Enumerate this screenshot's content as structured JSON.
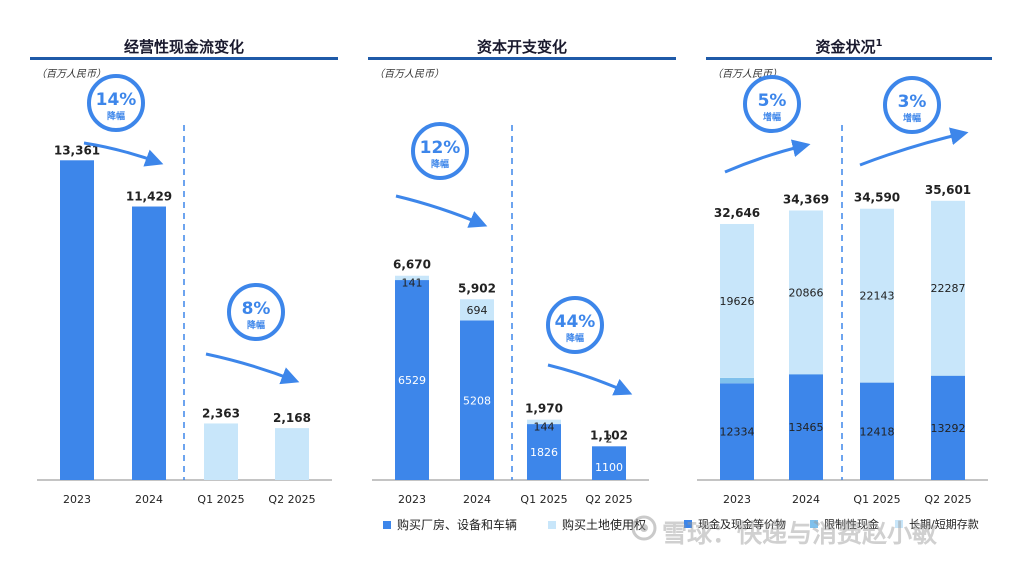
{
  "colors": {
    "dark": "#3d86ea",
    "light": "#c8e6fa",
    "mid": "#7fc0ec",
    "circle": "#3d86ea",
    "rule": "#1f5aa8"
  },
  "watermark": "雪球：快递与消费赵小敏",
  "chart_data": [
    {
      "type": "bar",
      "title": "经营性现金流变化",
      "unit": "（百万人民币）",
      "categories": [
        "2023",
        "2024",
        "Q1 2025",
        "Q2 2025"
      ],
      "values": [
        13361,
        11429,
        2363,
        2168
      ],
      "value_labels": [
        "13,361",
        "11,429",
        "2,363",
        "2,168"
      ],
      "bar_colors": [
        "dark",
        "dark",
        "light",
        "light"
      ],
      "ylim": [
        0,
        14000
      ],
      "annotations": [
        {
          "pct": "14%",
          "text": "降幅"
        },
        {
          "pct": "8%",
          "text": "降幅"
        }
      ]
    },
    {
      "type": "bar",
      "stacked": true,
      "title": "资本开支变化",
      "unit": "（百万人民币）",
      "categories": [
        "2023",
        "2024",
        "Q1 2025",
        "Q2 2025"
      ],
      "series": [
        {
          "name": "购买厂房、设备和车辆",
          "values": [
            6529,
            5208,
            1826,
            1100
          ]
        },
        {
          "name": "购买土地使用权",
          "values": [
            141,
            694,
            144,
            2
          ]
        }
      ],
      "totals": [
        "6,670",
        "5,902",
        "1,970",
        "1,102"
      ],
      "ylim": [
        0,
        8000
      ],
      "annotations": [
        {
          "pct": "12%",
          "text": "降幅"
        },
        {
          "pct": "44%",
          "text": "降幅"
        }
      ]
    },
    {
      "type": "bar",
      "stacked": true,
      "title": "资金状况",
      "title_sup": "1",
      "unit": "（百万人民币）",
      "categories": [
        "2023",
        "2024",
        "Q1 2025",
        "Q2 2025"
      ],
      "series": [
        {
          "name": "现金及现金等价物",
          "values": [
            12334,
            13465,
            12418,
            13292
          ]
        },
        {
          "name": "限制性现金",
          "values": [
            686,
            38,
            29,
            23
          ]
        },
        {
          "name": "长期/短期存款",
          "values": [
            19626,
            20866,
            22143,
            22287
          ]
        }
      ],
      "totals": [
        "32,646",
        "34,369",
        "34,590",
        "35,601"
      ],
      "ylim": [
        0,
        38000
      ],
      "annotations": [
        {
          "pct": "5%",
          "text": "增幅"
        },
        {
          "pct": "3%",
          "text": "增幅"
        }
      ]
    }
  ]
}
